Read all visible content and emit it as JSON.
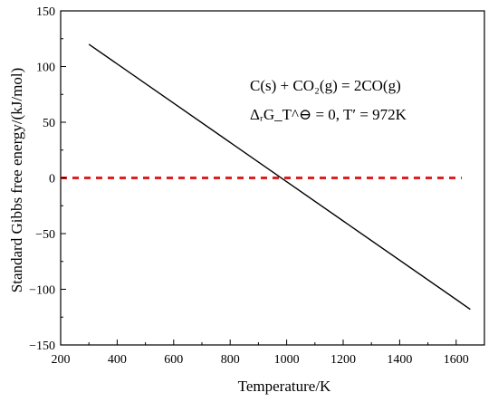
{
  "chart_data": {
    "type": "line",
    "xlabel": "Temperature/K",
    "ylabel": "Standard Gibbs free energy/(kJ/mol)",
    "xlim": [
      200,
      1700
    ],
    "ylim": [
      -150,
      150
    ],
    "x_ticks": [
      200,
      400,
      600,
      800,
      1000,
      1200,
      1400,
      1600
    ],
    "y_ticks": [
      150,
      100,
      50,
      0,
      -50,
      -100,
      -150
    ],
    "series": [
      {
        "style": "solid",
        "color": "#000000",
        "x": [
          300,
          1650
        ],
        "y": [
          120,
          -118
        ]
      }
    ],
    "reference_line": {
      "style": "dashed",
      "color": "#e02020",
      "y": 0,
      "x": [
        200,
        1620
      ]
    },
    "annotations": {
      "reaction": "C(s) + CO₂(g) = 2CO(g)",
      "condition": "ΔᵣG_T^⊖ = 0, T′ = 972K"
    },
    "grid": false,
    "legend": "none"
  }
}
